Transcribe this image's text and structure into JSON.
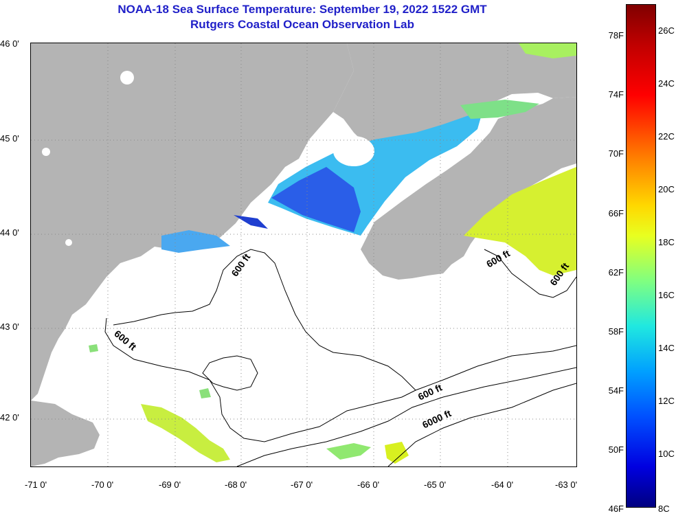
{
  "title": "NOAA-18 Sea Surface Temperature:  September 19, 2022 1522 GMT",
  "subtitle": "Rutgers Coastal Ocean Observation Lab",
  "lat_labels": [
    "46 0'",
    "45 0'",
    "44 0'",
    "43 0'",
    "42 0'"
  ],
  "lon_labels": [
    "-71 0'",
    "-70 0'",
    "-69 0'",
    "-68 0'",
    "-67 0'",
    "-66 0'",
    "-65 0'",
    "-64 0'",
    "-63 0'"
  ],
  "legend_f": [
    "78F",
    "74F",
    "70F",
    "66F",
    "62F",
    "58F",
    "54F",
    "50F",
    "46F"
  ],
  "legend_c": [
    "26C",
    "24C",
    "22C",
    "20C",
    "18C",
    "16C",
    "14C",
    "12C",
    "10C",
    "8C"
  ],
  "contours": [
    "600 ft",
    "600 ft",
    "600 ft",
    "600 ft",
    "600 ft",
    "6000 ft"
  ],
  "colors": {
    "land": "#b4b4b4",
    "title": "#1f1fc8"
  }
}
